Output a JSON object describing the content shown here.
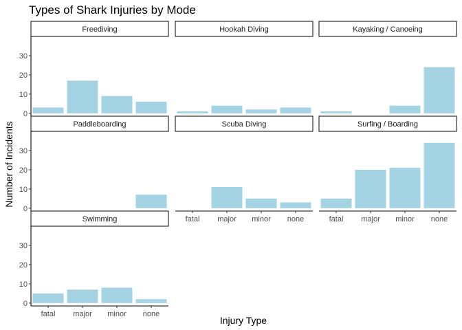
{
  "chart_data": {
    "type": "bar",
    "title": "Types of Shark Injuries by Mode",
    "xlabel": "Injury Type",
    "ylabel": "Number of Incidents",
    "categories": [
      "fatal",
      "major",
      "minor",
      "none"
    ],
    "ylim": [
      0,
      40
    ],
    "yticks": [
      0,
      10,
      20,
      30
    ],
    "bar_color": "#a4d3e4",
    "grid": false,
    "facets": [
      {
        "name": "Freediving",
        "values": [
          3,
          17,
          9,
          6
        ]
      },
      {
        "name": "Hookah Diving",
        "values": [
          1,
          4,
          2,
          3
        ]
      },
      {
        "name": "Kayaking / Canoeing",
        "values": [
          1,
          0,
          4,
          24
        ]
      },
      {
        "name": "Paddleboarding",
        "values": [
          0,
          0,
          0,
          7
        ]
      },
      {
        "name": "Scuba Diving",
        "values": [
          0,
          11,
          5,
          3
        ]
      },
      {
        "name": "Surfing / Boarding",
        "values": [
          5,
          20,
          21,
          34
        ]
      },
      {
        "name": "Swimming",
        "values": [
          5,
          7,
          8,
          2
        ]
      }
    ]
  }
}
